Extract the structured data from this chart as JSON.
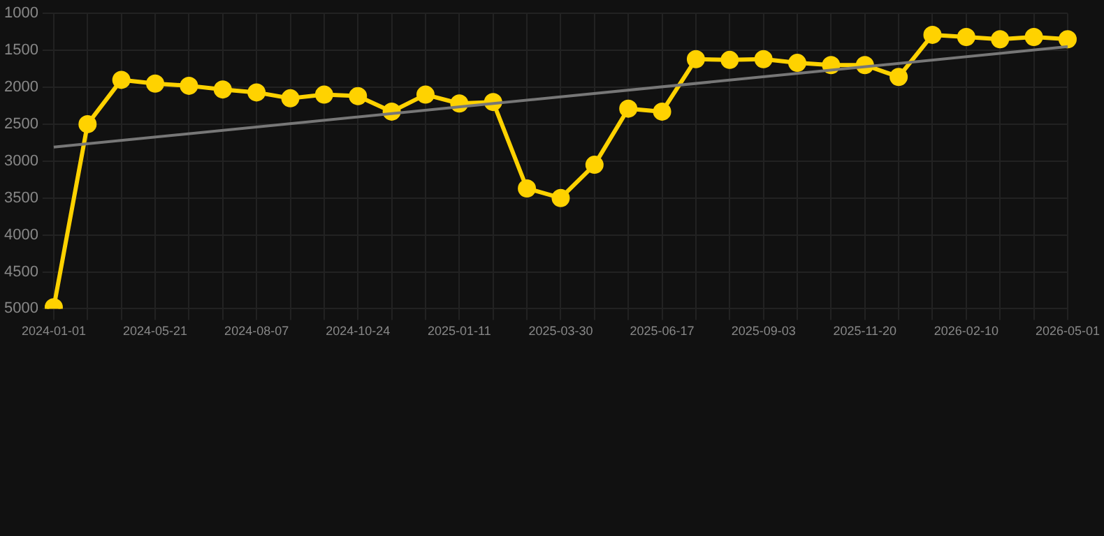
{
  "chart_data": {
    "type": "line",
    "categories": [
      "2024-01-01",
      null,
      null,
      "2024-05-21",
      null,
      null,
      "2024-08-07",
      null,
      null,
      "2024-10-24",
      null,
      null,
      "2025-01-11",
      null,
      null,
      "2025-03-30",
      null,
      null,
      "2025-06-17",
      null,
      null,
      "2025-09-03",
      null,
      null,
      "2025-11-20",
      null,
      null,
      "2026-02-10",
      null,
      null,
      "2026-05-01"
    ],
    "series": [
      {
        "color": "#ffd200",
        "marker": "circle",
        "values": [
          4980,
          2500,
          1900,
          1950,
          1980,
          2030,
          2070,
          2150,
          2100,
          2120,
          2330,
          2100,
          2220,
          2200,
          3370,
          3500,
          3050,
          2290,
          2330,
          1620,
          1630,
          1620,
          1670,
          1700,
          1700,
          1860,
          1290,
          1320,
          1350,
          1320,
          1350
        ]
      },
      {
        "color": "#777777",
        "marker": "none",
        "values": [
          2810,
          null,
          null,
          null,
          null,
          null,
          null,
          null,
          null,
          null,
          null,
          null,
          null,
          null,
          null,
          null,
          null,
          null,
          null,
          null,
          null,
          null,
          null,
          null,
          null,
          null,
          null,
          null,
          null,
          null,
          1450
        ]
      }
    ],
    "ylim": [
      5000,
      1000
    ],
    "yticks": [
      1000,
      1500,
      2000,
      2500,
      3000,
      3500,
      4000,
      4500,
      5000
    ],
    "grid": true,
    "legend": false
  }
}
